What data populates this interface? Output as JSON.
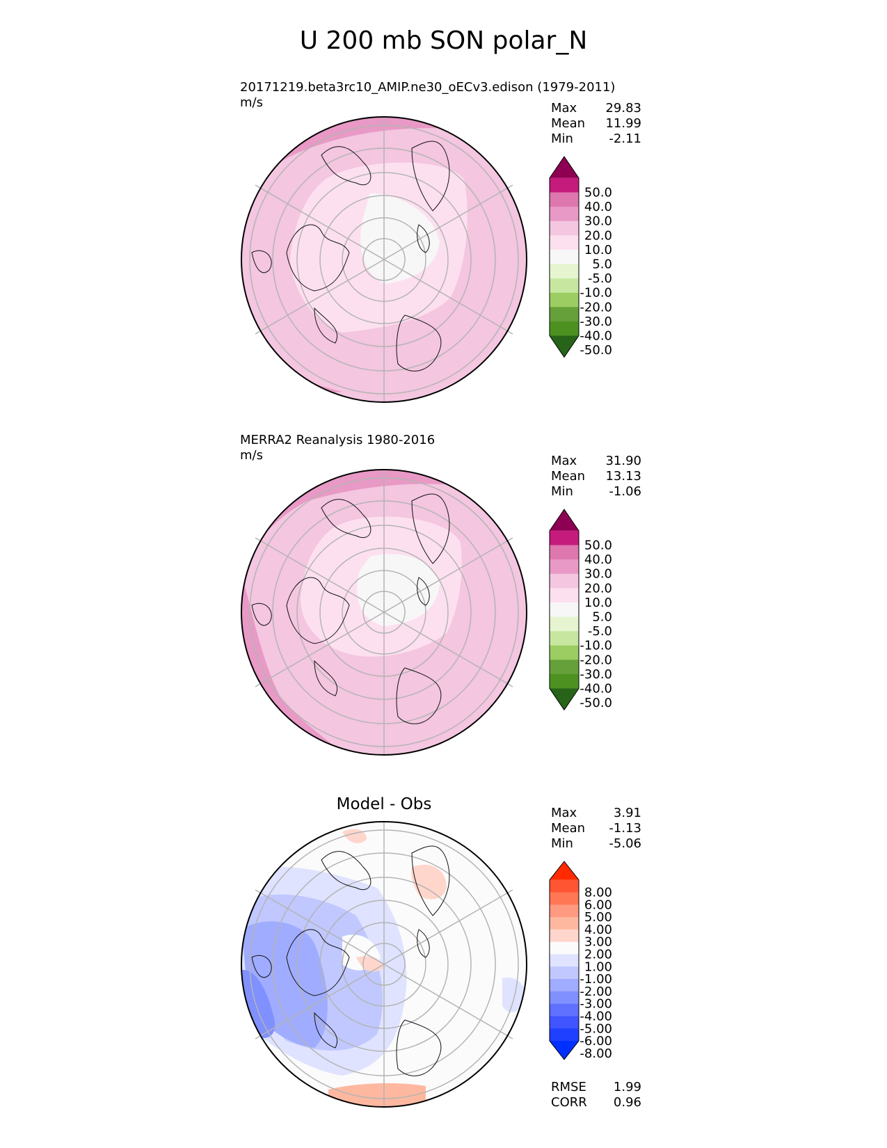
{
  "title": "U 200 mb SON polar_N",
  "panels": [
    {
      "id": "model",
      "subtitle": "20171219.beta3rc10_AMIP.ne30_oECv3.edison (1979-2011)",
      "units": "m/s",
      "stats": [
        {
          "label": "Max",
          "value": "29.83"
        },
        {
          "label": "Mean",
          "value": "11.99"
        },
        {
          "label": "Min",
          "value": "-2.11"
        }
      ],
      "colorbar": {
        "ticks": [
          "50.0",
          "40.0",
          "30.0",
          "20.0",
          "10.0",
          "5.0",
          "-5.0",
          "-10.0",
          "-20.0",
          "-30.0",
          "-40.0",
          "-50.0"
        ],
        "colors": [
          "#8e0152",
          "#c51b7d",
          "#de77ae",
          "#e899c5",
          "#f4c6e0",
          "#fde0ef",
          "#f7f7f7",
          "#e6f5d0",
          "#c7e7a1",
          "#9bcd62",
          "#66a03a",
          "#4d9221",
          "#276419"
        ]
      }
    },
    {
      "id": "obs",
      "subtitle": "MERRA2 Reanalysis 1980-2016",
      "units": "m/s",
      "stats": [
        {
          "label": "Max",
          "value": "31.90"
        },
        {
          "label": "Mean",
          "value": "13.13"
        },
        {
          "label": "Min",
          "value": "-1.06"
        }
      ],
      "colorbar": {
        "ticks": [
          "50.0",
          "40.0",
          "30.0",
          "20.0",
          "10.0",
          "5.0",
          "-5.0",
          "-10.0",
          "-20.0",
          "-30.0",
          "-40.0",
          "-50.0"
        ],
        "colors": [
          "#8e0152",
          "#c51b7d",
          "#de77ae",
          "#e899c5",
          "#f4c6e0",
          "#fde0ef",
          "#f7f7f7",
          "#e6f5d0",
          "#c7e7a1",
          "#9bcd62",
          "#66a03a",
          "#4d9221",
          "#276419"
        ]
      }
    },
    {
      "id": "diff",
      "center_label": "Model - Obs",
      "stats": [
        {
          "label": "Max",
          "value": "3.91"
        },
        {
          "label": "Mean",
          "value": "-1.13"
        },
        {
          "label": "Min",
          "value": "-5.06"
        }
      ],
      "metrics": [
        {
          "label": "RMSE",
          "value": "1.99"
        },
        {
          "label": "CORR",
          "value": "0.96"
        }
      ],
      "colorbar": {
        "ticks": [
          "8.00",
          "6.00",
          "5.00",
          "4.00",
          "3.00",
          "2.00",
          "1.00",
          "-1.00",
          "-2.00",
          "-3.00",
          "-4.00",
          "-5.00",
          "-6.00",
          "-8.00"
        ],
        "colors": [
          "#ff2a00",
          "#ff5533",
          "#ff7755",
          "#ff9980",
          "#ffb8a0",
          "#ffd6cc",
          "#fbfbfb",
          "#dfe3ff",
          "#c0c8ff",
          "#a0acff",
          "#8090ff",
          "#6070ff",
          "#4055ff",
          "#2040ff",
          "#0030ff"
        ]
      }
    }
  ]
}
